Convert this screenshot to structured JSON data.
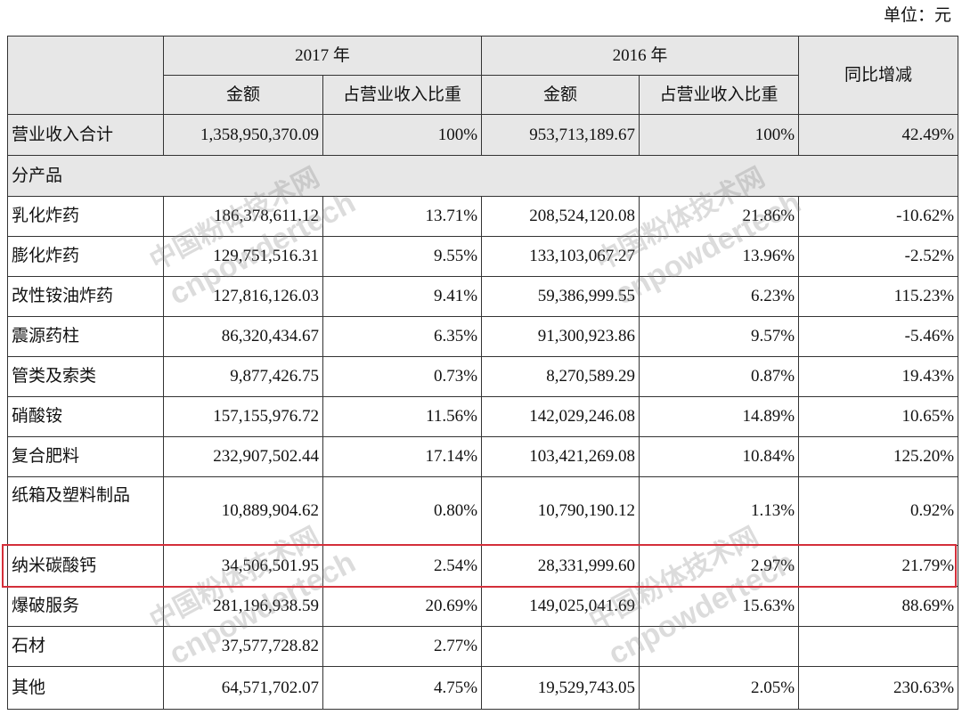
{
  "unit_label": "单位：元",
  "colors": {
    "header_bg": "#e7e7e7",
    "grid": "#333333",
    "highlight": "#d42f3a"
  },
  "watermark": {
    "cn": "中国粉体技术网",
    "en": "cnpowdertech"
  },
  "table": {
    "header": {
      "year_2017": "2017 年",
      "year_2016": "2016 年",
      "yoy": "同比增减",
      "amount_2017": "金额",
      "ratio_2017": "占营业收入比重",
      "amount_2016": "金额",
      "ratio_2016": "占营业收入比重"
    },
    "total_row": {
      "label": "营业收入合计",
      "amount_2017": "1,358,950,370.09",
      "ratio_2017": "100%",
      "amount_2016": "953,713,189.67",
      "ratio_2016": "100%",
      "yoy": "42.49%"
    },
    "section_label": "分产品",
    "rows": [
      {
        "label": "乳化炸药",
        "amount_2017": "186,378,611.12",
        "ratio_2017": "13.71%",
        "amount_2016": "208,524,120.08",
        "ratio_2016": "21.86%",
        "yoy": "-10.62%"
      },
      {
        "label": "膨化炸药",
        "amount_2017": "129,751,516.31",
        "ratio_2017": "9.55%",
        "amount_2016": "133,103,067.27",
        "ratio_2016": "13.96%",
        "yoy": "-2.52%"
      },
      {
        "label": "改性铵油炸药",
        "amount_2017": "127,816,126.03",
        "ratio_2017": "9.41%",
        "amount_2016": "59,386,999.55",
        "ratio_2016": "6.23%",
        "yoy": "115.23%"
      },
      {
        "label": "震源药柱",
        "amount_2017": "86,320,434.67",
        "ratio_2017": "6.35%",
        "amount_2016": "91,300,923.86",
        "ratio_2016": "9.57%",
        "yoy": "-5.46%"
      },
      {
        "label": "管类及索类",
        "amount_2017": "9,877,426.75",
        "ratio_2017": "0.73%",
        "amount_2016": "8,270,589.29",
        "ratio_2016": "0.87%",
        "yoy": "19.43%"
      },
      {
        "label": "硝酸铵",
        "amount_2017": "157,155,976.72",
        "ratio_2017": "11.56%",
        "amount_2016": "142,029,246.08",
        "ratio_2016": "14.89%",
        "yoy": "10.65%"
      },
      {
        "label": "复合肥料",
        "amount_2017": "232,907,502.44",
        "ratio_2017": "17.14%",
        "amount_2016": "103,421,269.08",
        "ratio_2016": "10.84%",
        "yoy": "125.20%"
      },
      {
        "label": "纸箱及塑料制品",
        "amount_2017": "10,889,904.62",
        "ratio_2017": "0.80%",
        "amount_2016": "10,790,190.12",
        "ratio_2016": "1.13%",
        "yoy": "0.92%"
      },
      {
        "label": "纳米碳酸钙",
        "amount_2017": "34,506,501.95",
        "ratio_2017": "2.54%",
        "amount_2016": "28,331,999.60",
        "ratio_2016": "2.97%",
        "yoy": "21.79%",
        "highlight": true
      },
      {
        "label": "爆破服务",
        "amount_2017": "281,196,938.59",
        "ratio_2017": "20.69%",
        "amount_2016": "149,025,041.69",
        "ratio_2016": "15.63%",
        "yoy": "88.69%"
      },
      {
        "label": "石材",
        "amount_2017": "37,577,728.82",
        "ratio_2017": "2.77%",
        "amount_2016": "",
        "ratio_2016": "",
        "yoy": ""
      },
      {
        "label": "其他",
        "amount_2017": "64,571,702.07",
        "ratio_2017": "4.75%",
        "amount_2016": "19,529,743.05",
        "ratio_2016": "2.05%",
        "yoy": "230.63%"
      }
    ]
  }
}
